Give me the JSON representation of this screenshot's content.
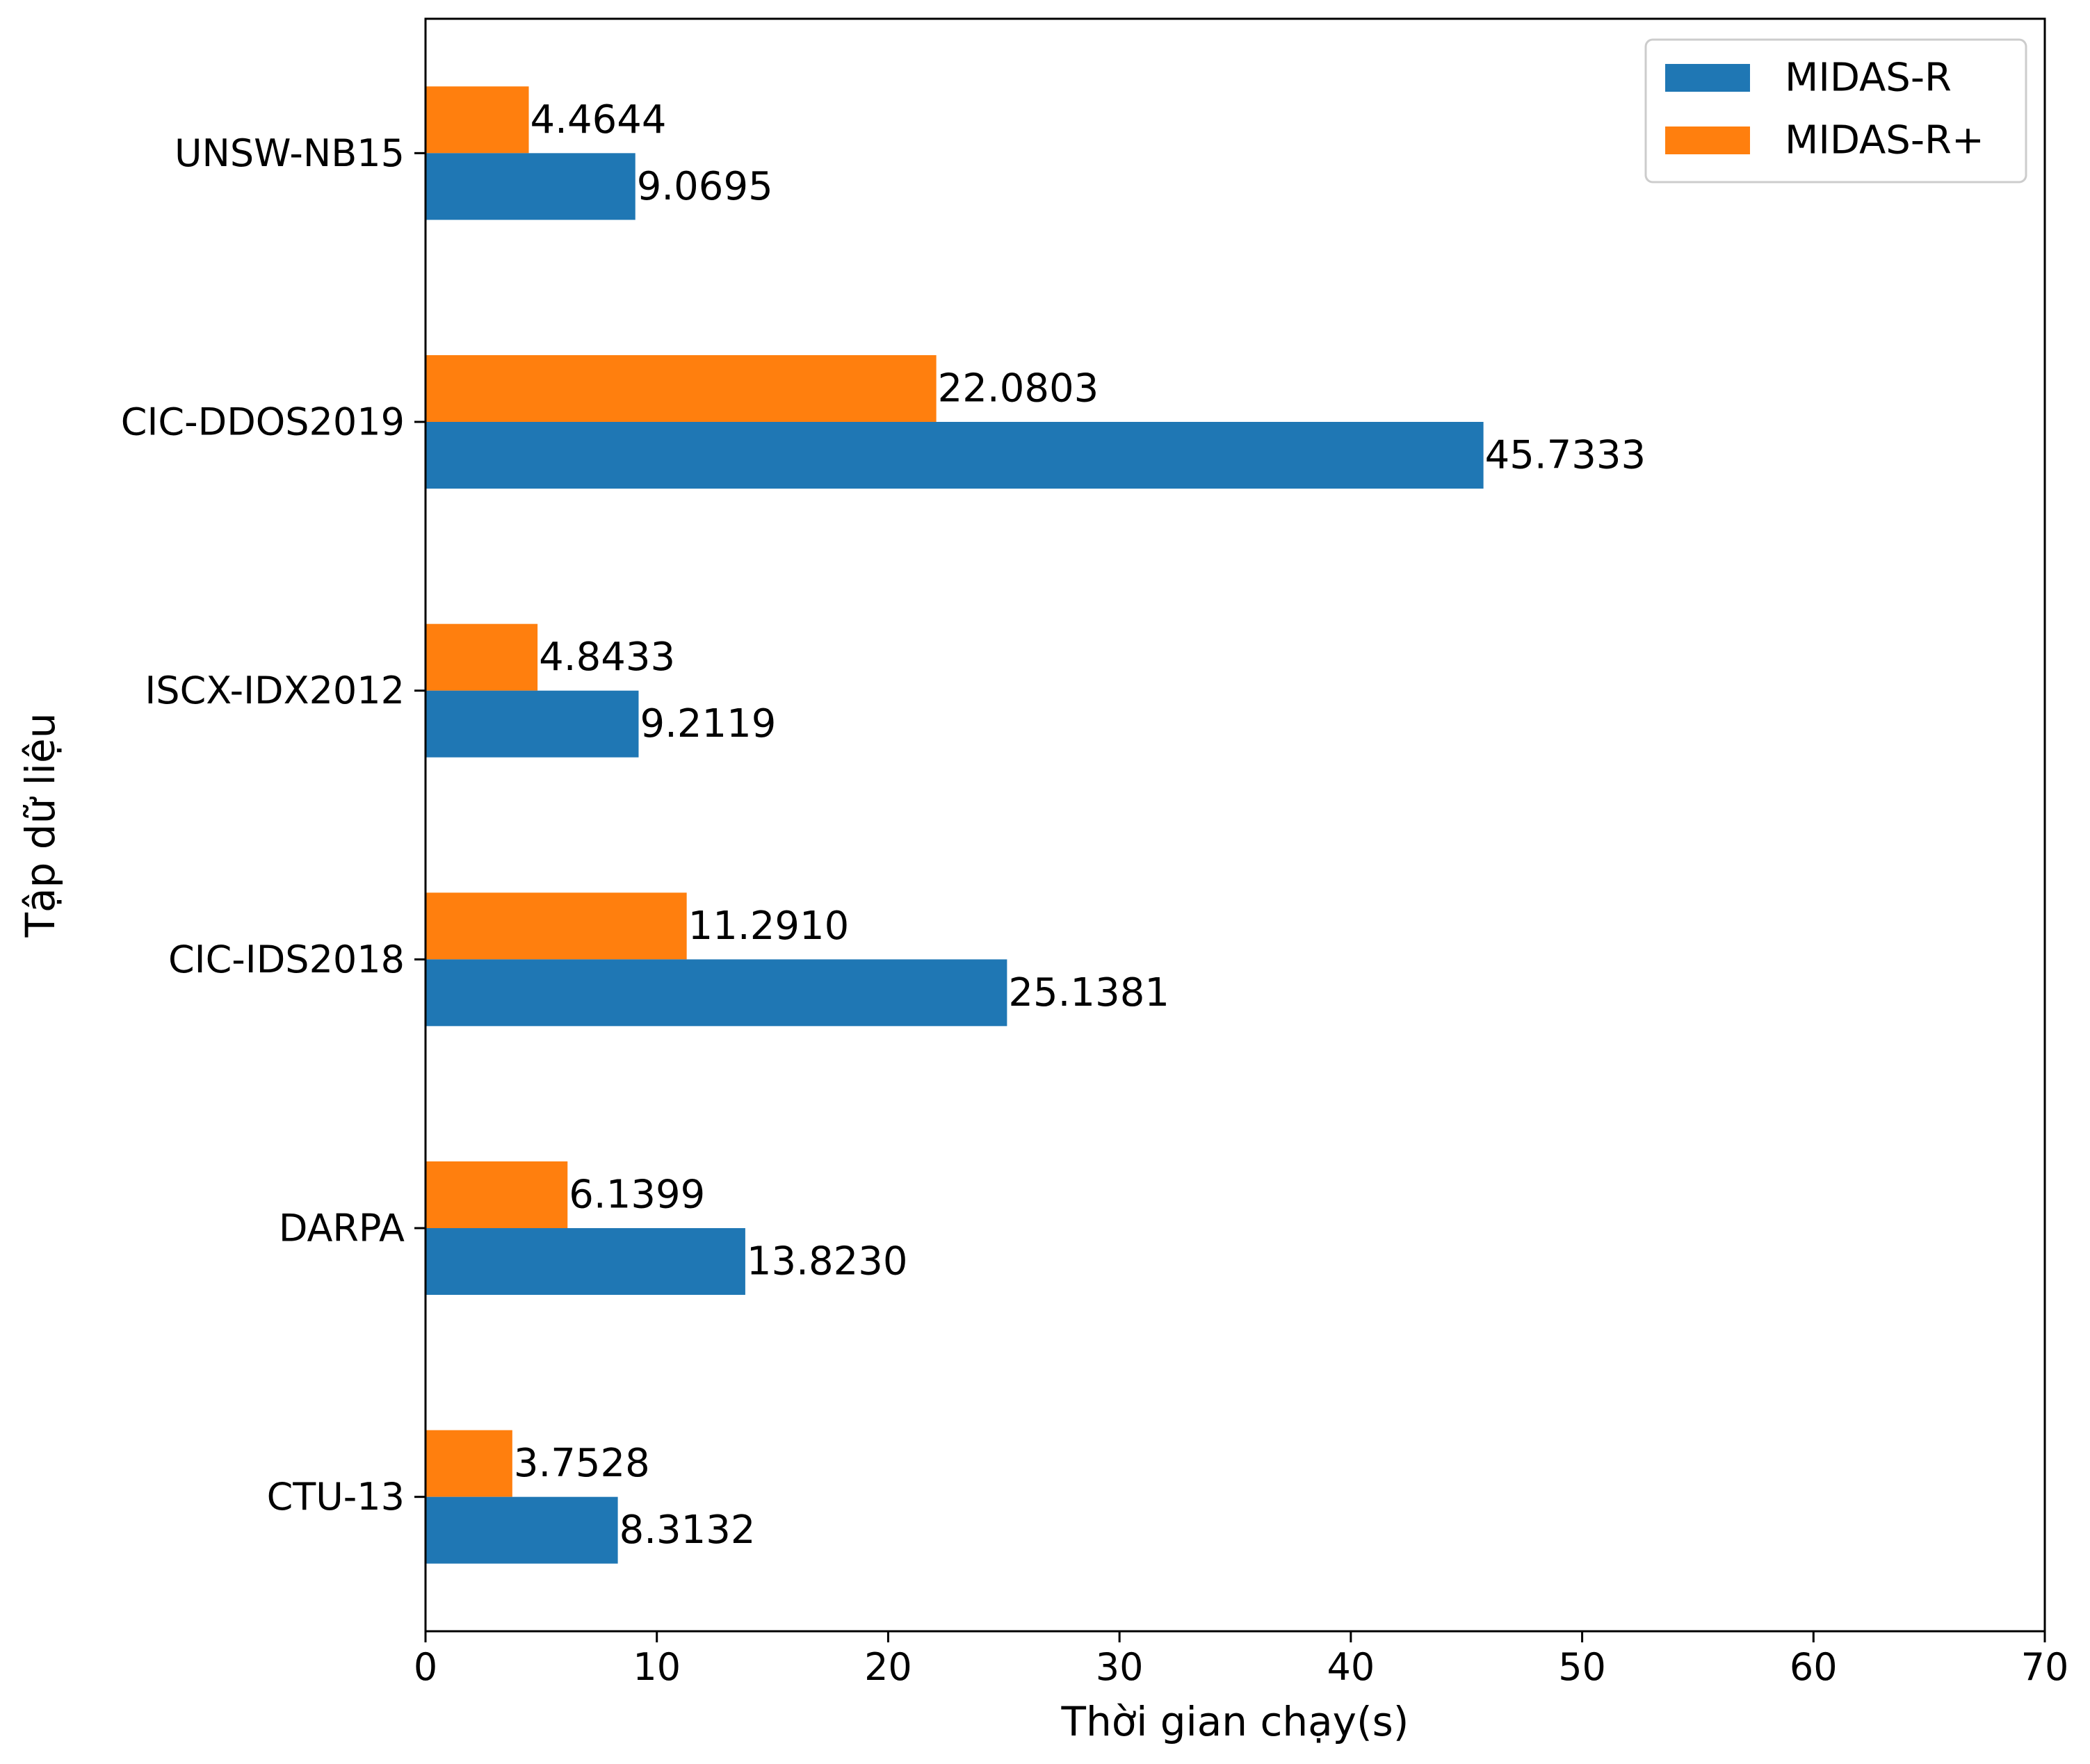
{
  "chart_data": {
    "type": "bar",
    "orientation": "horizontal",
    "title": "",
    "xlabel": "Thời gian chạy(s)",
    "ylabel": "Tập dữ liệu",
    "xlim": [
      0,
      70
    ],
    "xticks": [
      0,
      10,
      20,
      30,
      40,
      50,
      60,
      70
    ],
    "grid": false,
    "legend_position": "top-right",
    "categories": [
      "UNSW-NB15",
      "CIC-DDOS2019",
      "ISCX-IDX2012",
      "CIC-IDS2018",
      "DARPA",
      "CTU-13"
    ],
    "series": [
      {
        "name": "MIDAS-R",
        "color": "#1f77b4",
        "values": [
          9.0695,
          45.7333,
          9.2119,
          25.1381,
          13.823,
          8.3132
        ],
        "value_labels": [
          "9.0695",
          "45.7333",
          "9.2119",
          "25.1381",
          "13.8230",
          "8.3132"
        ]
      },
      {
        "name": "MIDAS-R+",
        "color": "#ff7f0e",
        "values": [
          4.4644,
          22.0803,
          4.8433,
          11.291,
          6.1399,
          3.7528
        ],
        "value_labels": [
          "4.4644",
          "22.0803",
          "4.8433",
          "11.2910",
          "6.1399",
          "3.7528"
        ]
      }
    ]
  }
}
